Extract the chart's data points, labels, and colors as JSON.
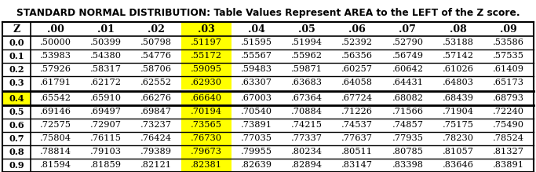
{
  "title": "STANDARD NORMAL DISTRIBUTION: Table Values Represent AREA to the LEFT of the Z score.",
  "headers": [
    "Z",
    ".00",
    ".01",
    ".02",
    ".03",
    ".04",
    ".05",
    ".06",
    ".07",
    ".08",
    ".09"
  ],
  "rows": [
    [
      "0.0",
      ".50000",
      ".50399",
      ".50798",
      ".51197",
      ".51595",
      ".51994",
      ".52392",
      ".52790",
      ".53188",
      ".53586"
    ],
    [
      "0.1",
      ".53983",
      ".54380",
      ".54776",
      ".55172",
      ".55567",
      ".55962",
      ".56356",
      ".56749",
      ".57142",
      ".57535"
    ],
    [
      "0.2",
      ".57926",
      ".58317",
      ".58706",
      ".59095",
      ".59483",
      ".59871",
      ".60257",
      ".60642",
      ".61026",
      ".61409"
    ],
    [
      "0.3",
      ".61791",
      ".62172",
      ".62552",
      ".62930",
      ".63307",
      ".63683",
      ".64058",
      ".64431",
      ".64803",
      ".65173"
    ],
    [
      "0.4",
      ".65542",
      ".65910",
      ".66276",
      ".66640",
      ".67003",
      ".67364",
      ".67724",
      ".68082",
      ".68439",
      ".68793"
    ],
    [
      "0.5",
      ".69146",
      ".69497",
      ".69847",
      ".70194",
      ".70540",
      ".70884",
      ".71226",
      ".71566",
      ".71904",
      ".72240"
    ],
    [
      "0.6",
      ".72575",
      ".72907",
      ".73237",
      ".73565",
      ".73891",
      ".74215",
      ".74537",
      ".74857",
      ".75175",
      ".75490"
    ],
    [
      "0.7",
      ".75804",
      ".76115",
      ".76424",
      ".76730",
      ".77035",
      ".77337",
      ".77637",
      ".77935",
      ".78230",
      ".78524"
    ],
    [
      "0.8",
      ".78814",
      ".79103",
      ".79389",
      ".79673",
      ".79955",
      ".80234",
      ".80511",
      ".80785",
      ".81057",
      ".81327"
    ],
    [
      "0.9",
      ".81594",
      ".81859",
      ".82121",
      ".82381",
      ".82639",
      ".82894",
      ".83147",
      ".83398",
      ".83646",
      ".83891"
    ]
  ],
  "highlight_col": 4,
  "highlight_row": 4,
  "col_highlight_color": "#FFFF00",
  "row_highlight_color": "#FFFF00",
  "cell_highlight_color": "#FFFF00",
  "background_color": "#FFFFFF",
  "text_color": "#000000",
  "title_fontsize": 8.8,
  "header_fontsize": 9.0,
  "cell_fontsize": 8.2
}
